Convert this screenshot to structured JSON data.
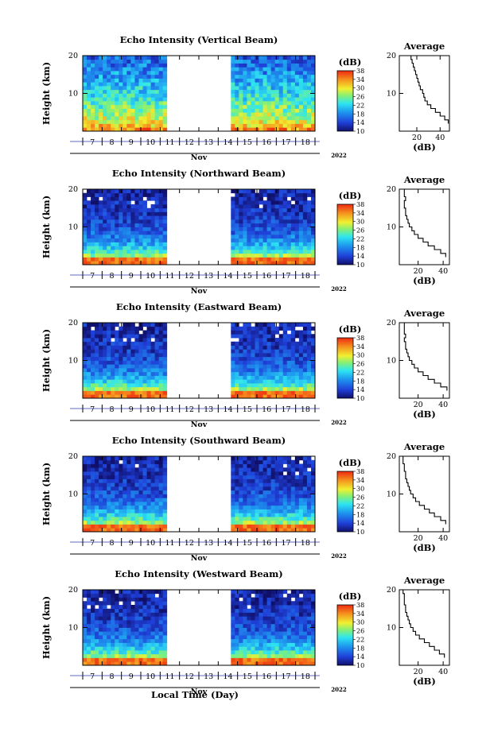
{
  "figure": {
    "xlabel": "Local Time (Day)",
    "month": "Nov",
    "year": "2022",
    "colorbar_unit": "(dB)",
    "avg_title": "Average",
    "avg_xlabel": "(dB)",
    "ylabel": "Height (km)"
  },
  "chart_data": [
    {
      "type": "heatmap",
      "title": "Echo Intensity (Vertical Beam)",
      "ylabel": "Height (km)",
      "xlabel": "Local Time (Day)",
      "x_ticks": [
        "7",
        "8",
        "9",
        "10",
        "11",
        "12",
        "13",
        "14",
        "15",
        "16",
        "17",
        "18"
      ],
      "month": "Nov",
      "year": "2022",
      "ylim": [
        0,
        20
      ],
      "y_ticks": [
        10,
        20
      ],
      "colorbar": {
        "label": "(dB)",
        "range": [
          10,
          38
        ],
        "ticks": [
          10,
          14,
          18,
          22,
          26,
          30,
          34,
          38
        ]
      },
      "data_gap": {
        "from": "11",
        "to": "14"
      },
      "average": {
        "title": "Average",
        "xlabel": "(dB)",
        "x_ticks": [
          20,
          40
        ],
        "xlim": [
          5,
          48
        ],
        "profile": [
          [
            47,
            2.5
          ],
          [
            44,
            3.5
          ],
          [
            40,
            4.5
          ],
          [
            36,
            5.5
          ],
          [
            32,
            6.5
          ],
          [
            29,
            7.5
          ],
          [
            27,
            8.5
          ],
          [
            26,
            9.5
          ],
          [
            25,
            10.5
          ],
          [
            23,
            11.5
          ],
          [
            22,
            12.5
          ],
          [
            21,
            13.5
          ],
          [
            20,
            14.5
          ],
          [
            19,
            15.5
          ],
          [
            18,
            16.5
          ],
          [
            17,
            17.5
          ],
          [
            16,
            18.5
          ],
          [
            15,
            19.5
          ]
        ]
      }
    },
    {
      "type": "heatmap",
      "title": "Echo Intensity (Northward Beam)",
      "ylabel": "Height (km)",
      "xlabel": "Local Time (Day)",
      "x_ticks": [
        "7",
        "8",
        "9",
        "10",
        "11",
        "12",
        "13",
        "14",
        "15",
        "16",
        "17",
        "18"
      ],
      "month": "Nov",
      "year": "2022",
      "ylim": [
        0,
        20
      ],
      "y_ticks": [
        10,
        20
      ],
      "colorbar": {
        "label": "(dB)",
        "range": [
          10,
          38
        ],
        "ticks": [
          10,
          14,
          18,
          22,
          26,
          30,
          34,
          38
        ]
      },
      "data_gap": {
        "from": "11",
        "to": "14"
      },
      "average": {
        "title": "Average",
        "xlabel": "(dB)",
        "x_ticks": [
          20,
          40
        ],
        "xlim": [
          5,
          45
        ],
        "profile": [
          [
            42,
            2.5
          ],
          [
            38,
            3.5
          ],
          [
            33,
            4.5
          ],
          [
            28,
            5.5
          ],
          [
            24,
            6.5
          ],
          [
            20,
            7.5
          ],
          [
            17,
            8.5
          ],
          [
            15,
            9.5
          ],
          [
            13,
            10.5
          ],
          [
            12,
            11.5
          ],
          [
            11,
            12.5
          ],
          [
            10,
            13.5
          ],
          [
            10,
            14.5
          ],
          [
            9,
            15.5
          ],
          [
            9,
            16.5
          ],
          [
            10,
            17.5
          ],
          [
            9,
            18.5
          ],
          [
            9,
            19.5
          ]
        ]
      }
    },
    {
      "type": "heatmap",
      "title": "Echo Intensity (Eastward Beam)",
      "ylabel": "Height (km)",
      "xlabel": "Local Time (Day)",
      "x_ticks": [
        "7",
        "8",
        "9",
        "10",
        "11",
        "12",
        "13",
        "14",
        "15",
        "16",
        "17",
        "18"
      ],
      "month": "Nov",
      "year": "2022",
      "ylim": [
        0,
        20
      ],
      "y_ticks": [
        10,
        20
      ],
      "colorbar": {
        "label": "(dB)",
        "range": [
          10,
          38
        ],
        "ticks": [
          10,
          14,
          18,
          22,
          26,
          30,
          34,
          38
        ]
      },
      "data_gap": {
        "from": "11",
        "to": "14"
      },
      "average": {
        "title": "Average",
        "xlabel": "(dB)",
        "x_ticks": [
          20,
          40
        ],
        "xlim": [
          5,
          45
        ],
        "profile": [
          [
            43,
            2.5
          ],
          [
            38,
            3.5
          ],
          [
            33,
            4.5
          ],
          [
            28,
            5.5
          ],
          [
            24,
            6.5
          ],
          [
            20,
            7.5
          ],
          [
            17,
            8.5
          ],
          [
            15,
            9.5
          ],
          [
            13,
            10.5
          ],
          [
            12,
            11.5
          ],
          [
            11,
            12.5
          ],
          [
            10,
            13.5
          ],
          [
            10,
            14.5
          ],
          [
            9,
            15.5
          ],
          [
            10,
            16.5
          ],
          [
            9,
            17.5
          ],
          [
            9,
            18.5
          ],
          [
            9,
            19.5
          ]
        ]
      }
    },
    {
      "type": "heatmap",
      "title": "Echo Intensity (Southward Beam)",
      "ylabel": "Height (km)",
      "xlabel": "Local Time (Day)",
      "x_ticks": [
        "7",
        "8",
        "9",
        "10",
        "11",
        "12",
        "13",
        "14",
        "15",
        "16",
        "17",
        "18"
      ],
      "month": "Nov",
      "year": "2022",
      "ylim": [
        0,
        20
      ],
      "y_ticks": [
        10,
        20
      ],
      "colorbar": {
        "label": "(dB)",
        "range": [
          10,
          38
        ],
        "ticks": [
          10,
          14,
          18,
          22,
          26,
          30,
          34,
          38
        ]
      },
      "data_gap": {
        "from": "11",
        "to": "14"
      },
      "average": {
        "title": "Average",
        "xlabel": "(dB)",
        "x_ticks": [
          20,
          40
        ],
        "xlim": [
          5,
          45
        ],
        "profile": [
          [
            42,
            2.5
          ],
          [
            38,
            3.5
          ],
          [
            33,
            4.5
          ],
          [
            29,
            5.5
          ],
          [
            25,
            6.5
          ],
          [
            21,
            7.5
          ],
          [
            18,
            8.5
          ],
          [
            16,
            9.5
          ],
          [
            14,
            10.5
          ],
          [
            13,
            11.5
          ],
          [
            12,
            12.5
          ],
          [
            11,
            13.5
          ],
          [
            10,
            14.5
          ],
          [
            10,
            15.5
          ],
          [
            9,
            16.5
          ],
          [
            9,
            17.5
          ],
          [
            8,
            18.5
          ],
          [
            8,
            19.5
          ]
        ]
      }
    },
    {
      "type": "heatmap",
      "title": "Echo Intensity (Westward Beam)",
      "ylabel": "Height (km)",
      "xlabel": "Local Time (Day)",
      "x_ticks": [
        "7",
        "8",
        "9",
        "10",
        "11",
        "12",
        "13",
        "14",
        "15",
        "16",
        "17",
        "18"
      ],
      "month": "Nov",
      "year": "2022",
      "ylim": [
        0,
        20
      ],
      "y_ticks": [
        10,
        20
      ],
      "colorbar": {
        "label": "(dB)",
        "range": [
          10,
          38
        ],
        "ticks": [
          10,
          14,
          18,
          22,
          26,
          30,
          34,
          38
        ]
      },
      "data_gap": {
        "from": "11",
        "to": "14"
      },
      "average": {
        "title": "Average",
        "xlabel": "(dB)",
        "x_ticks": [
          20,
          40
        ],
        "xlim": [
          5,
          45
        ],
        "profile": [
          [
            41,
            2.5
          ],
          [
            37,
            3.5
          ],
          [
            33,
            4.5
          ],
          [
            29,
            5.5
          ],
          [
            25,
            6.5
          ],
          [
            21,
            7.5
          ],
          [
            18,
            8.5
          ],
          [
            16,
            9.5
          ],
          [
            14,
            10.5
          ],
          [
            13,
            11.5
          ],
          [
            12,
            12.5
          ],
          [
            11,
            13.5
          ],
          [
            10,
            14.5
          ],
          [
            10,
            15.5
          ],
          [
            9,
            16.5
          ],
          [
            9,
            17.5
          ],
          [
            9,
            18.5
          ],
          [
            8,
            19.5
          ]
        ]
      }
    }
  ]
}
